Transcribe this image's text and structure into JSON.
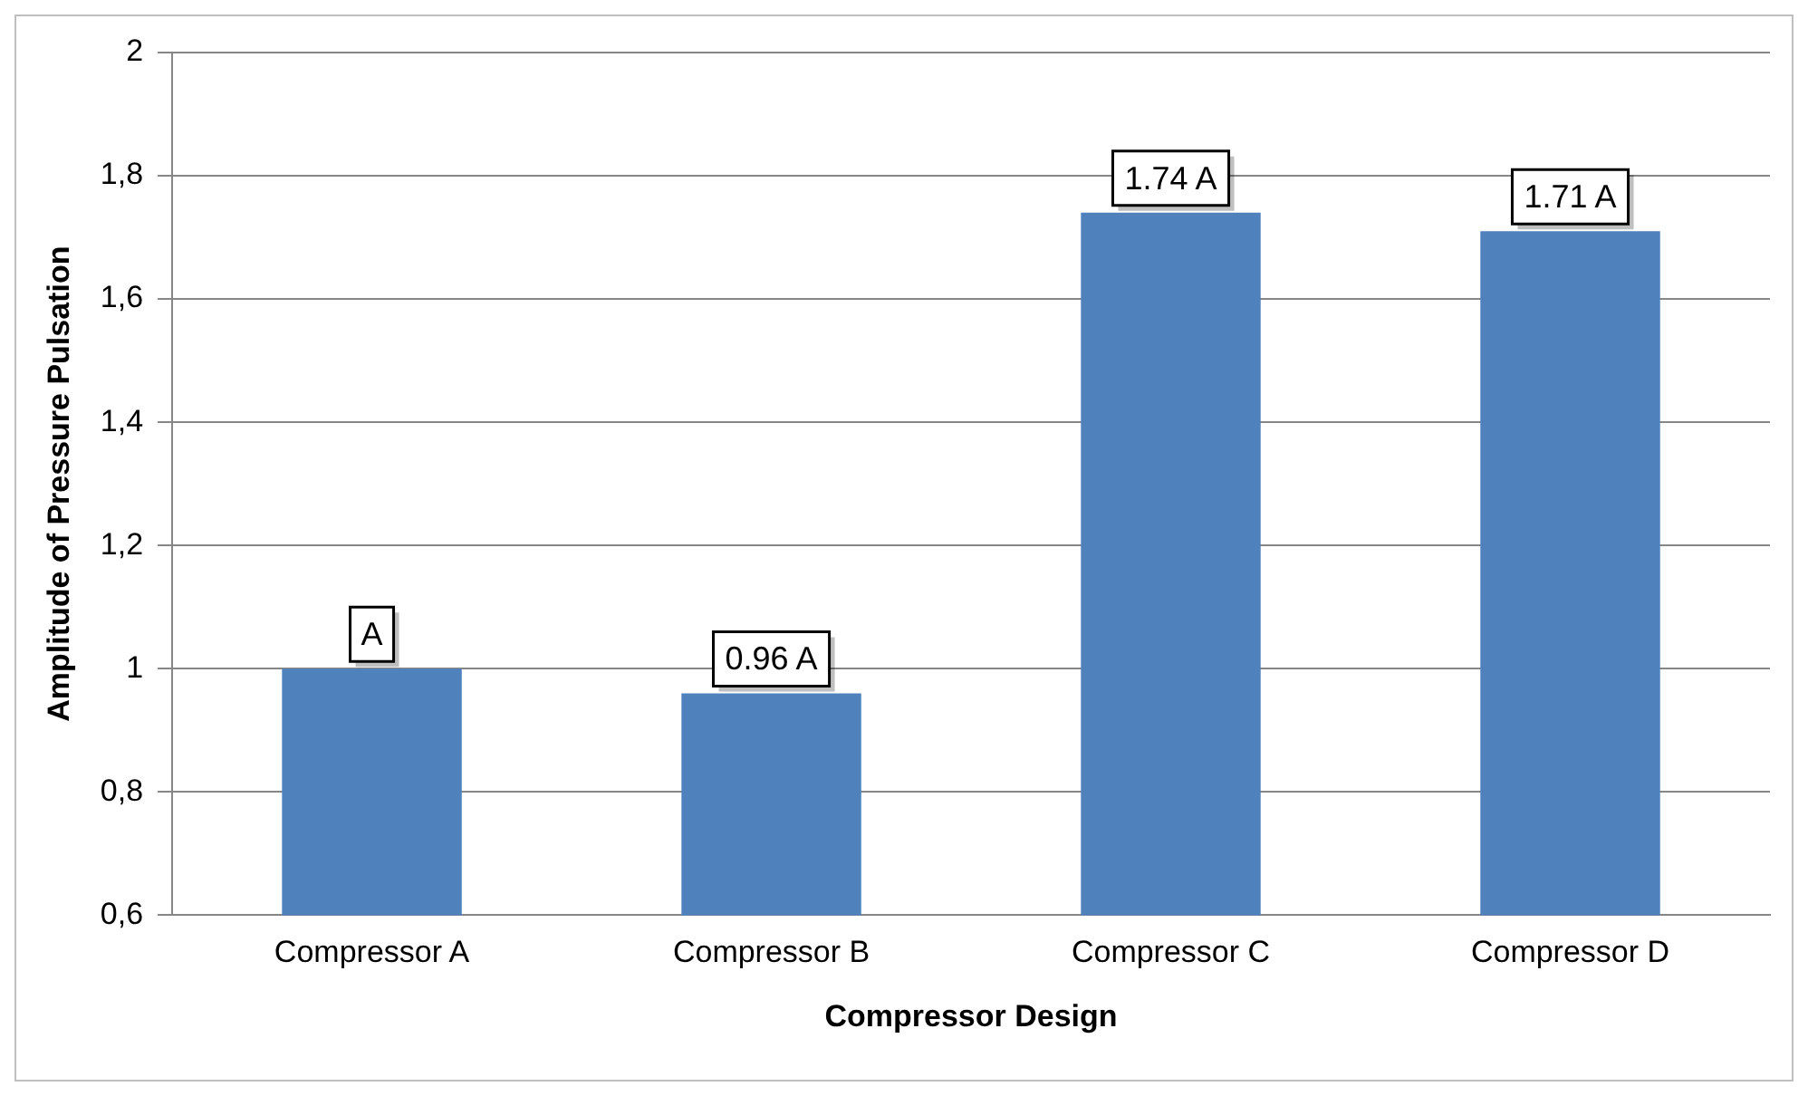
{
  "chart_data": {
    "type": "bar",
    "xlabel": "Compressor Design",
    "ylabel": "Amplitude of Pressure Pulsation",
    "categories": [
      "Compressor A",
      "Compressor B",
      "Compressor C",
      "Compressor D"
    ],
    "values": [
      1,
      0.96,
      1.74,
      1.71
    ],
    "color": "#4f81bd",
    "value_labels": [
      "A",
      "0.96 A",
      "1.74 A",
      "1.71 A"
    ],
    "ylim": [
      0.6,
      2
    ],
    "yticks": [
      {
        "value": 0.6,
        "label": "0,6"
      },
      {
        "value": 0.8,
        "label": "0,8"
      },
      {
        "value": 1,
        "label": "1"
      },
      {
        "value": 1.2,
        "label": "1,2"
      },
      {
        "value": 1.4,
        "label": "1,4"
      },
      {
        "value": 1.6,
        "label": "1,6"
      },
      {
        "value": 1.8,
        "label": "1,8"
      },
      {
        "value": 2,
        "label": "2"
      }
    ],
    "grid": "y",
    "legend": false
  }
}
